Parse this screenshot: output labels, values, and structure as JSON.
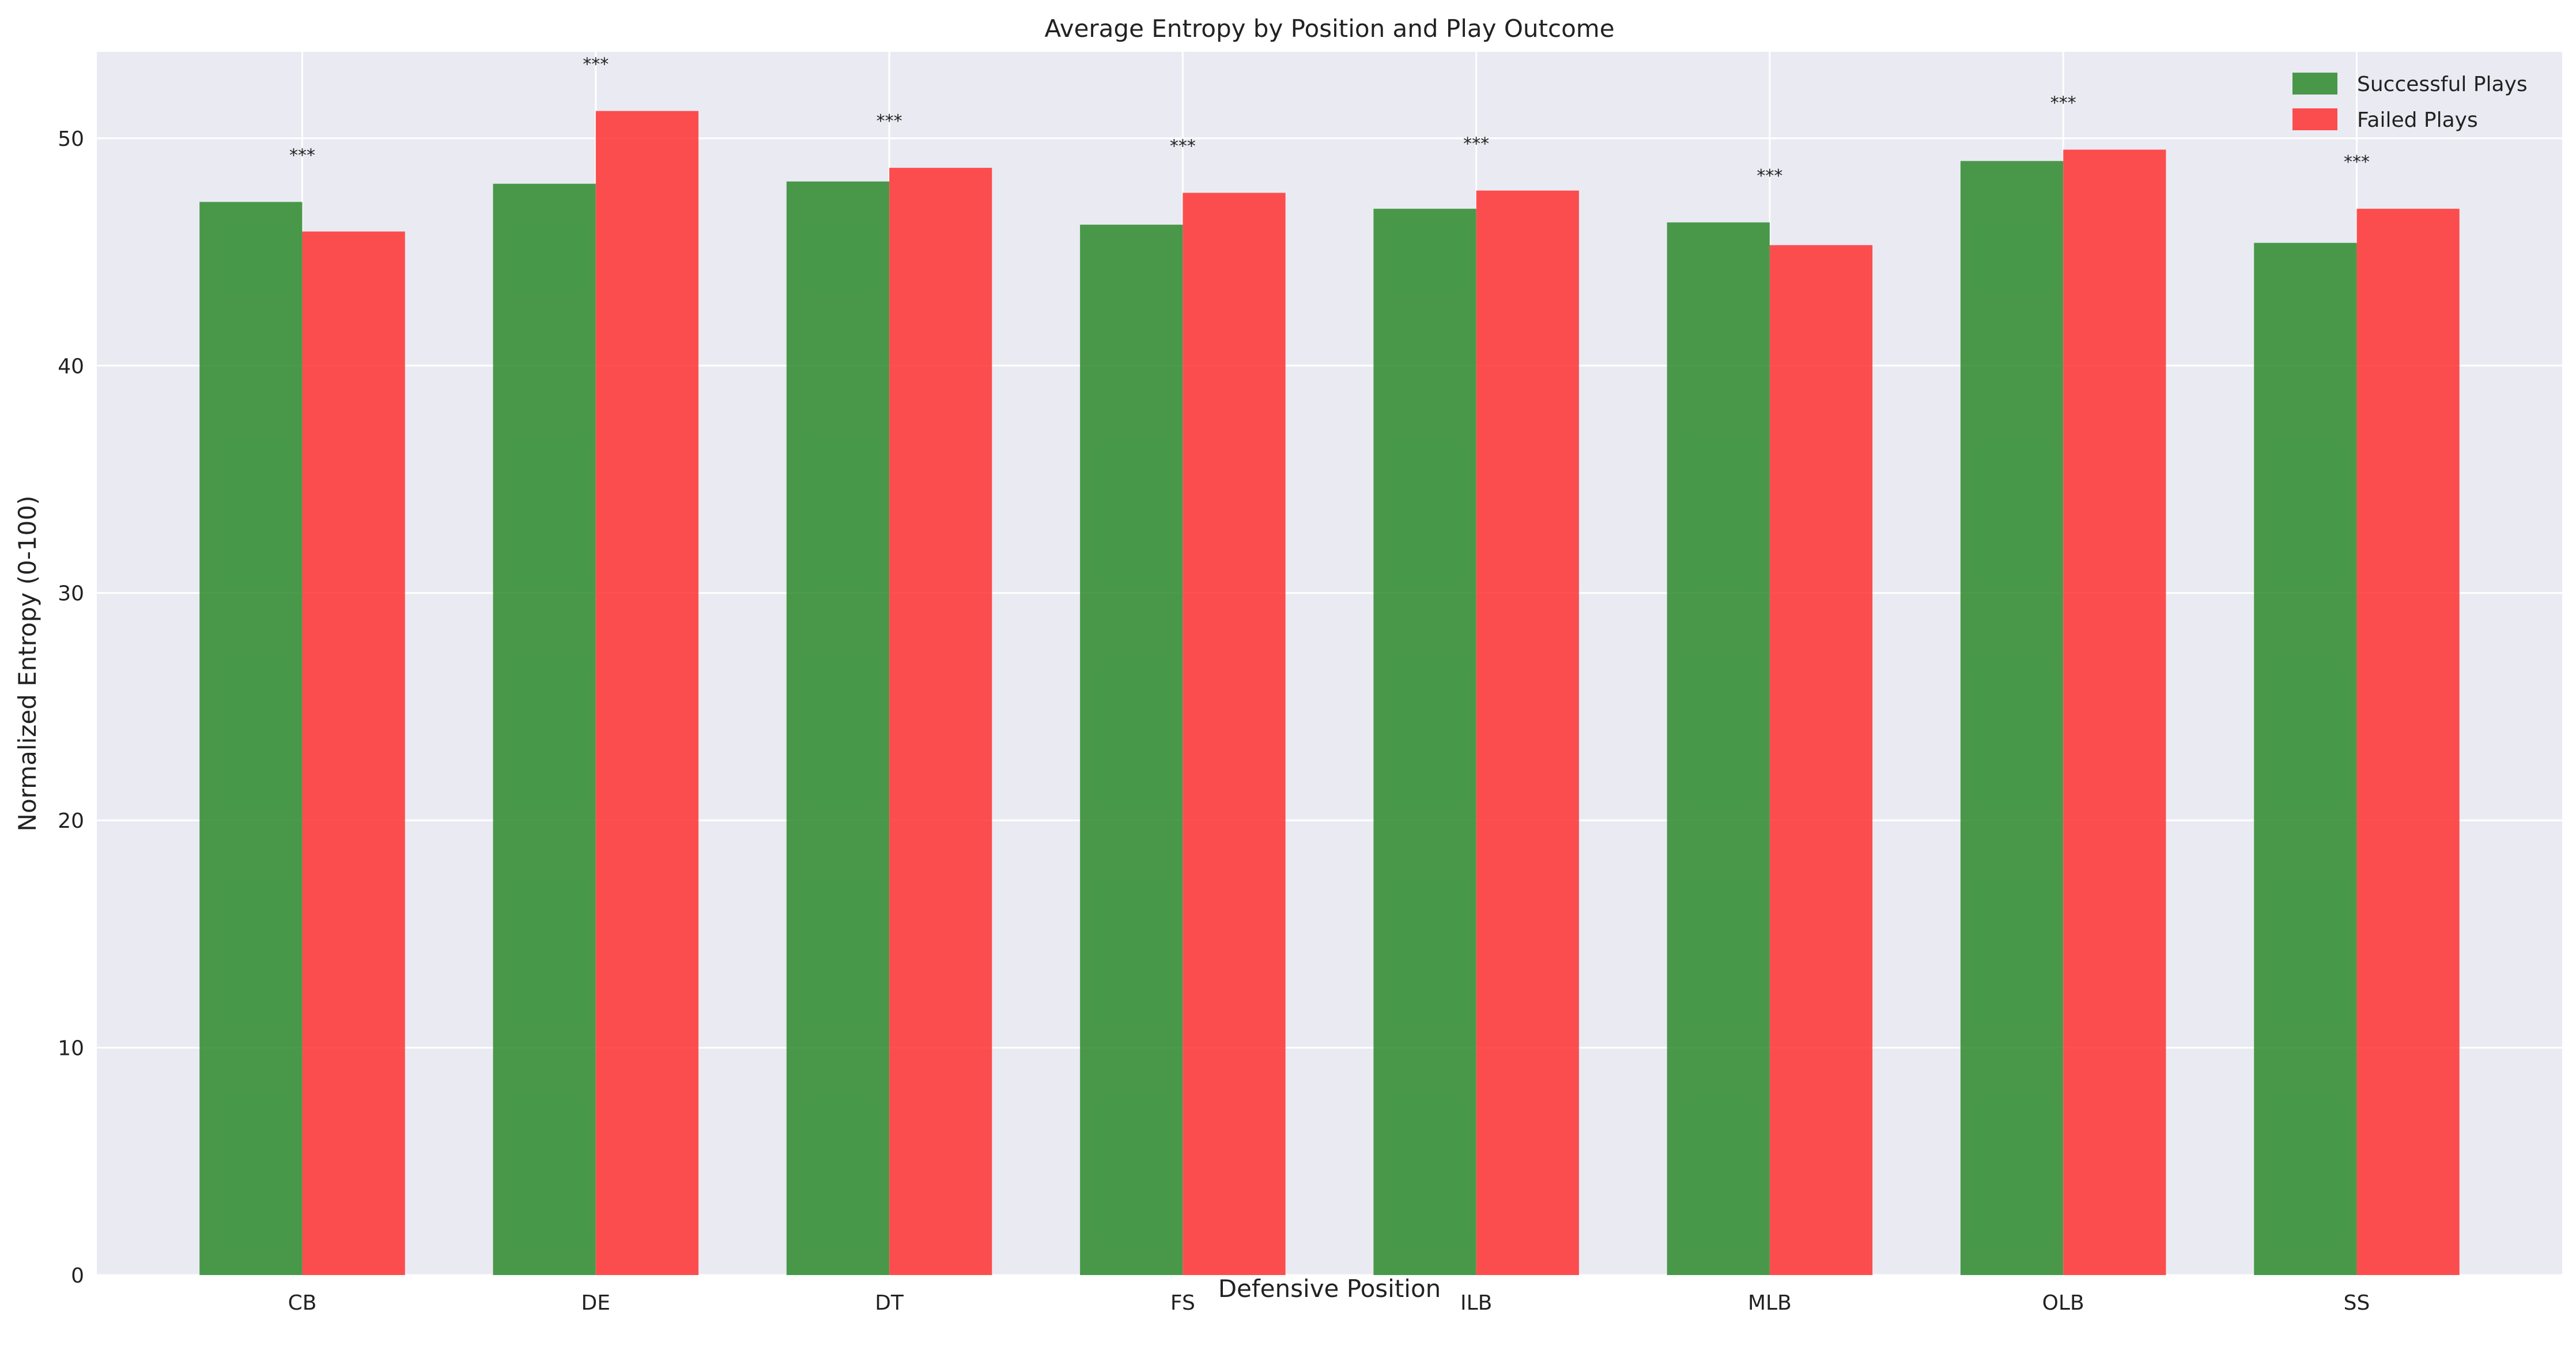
{
  "chart_data": {
    "type": "bar",
    "title": "Average Entropy by Position and Play Outcome",
    "xlabel": "Defensive Position",
    "ylabel": "Normalized Entropy (0-100)",
    "categories": [
      "CB",
      "DE",
      "DT",
      "FS",
      "ILB",
      "MLB",
      "OLB",
      "SS"
    ],
    "series": [
      {
        "name": "Successful Plays",
        "color": "#2e8b2e",
        "values": [
          47.2,
          48.0,
          48.1,
          46.2,
          46.9,
          46.3,
          49.0,
          45.4
        ]
      },
      {
        "name": "Failed Plays",
        "color": "#ff3333",
        "values": [
          45.9,
          51.2,
          48.7,
          47.6,
          47.7,
          45.3,
          49.5,
          46.9
        ]
      }
    ],
    "annotations": [
      "***",
      "***",
      "***",
      "***",
      "***",
      "***",
      "***",
      "***"
    ],
    "ylim": [
      0,
      53.8
    ],
    "yticks": [
      0,
      10,
      20,
      30,
      40,
      50
    ],
    "grid": true,
    "legend_position": "top-right",
    "background": "#eaeaf2"
  }
}
